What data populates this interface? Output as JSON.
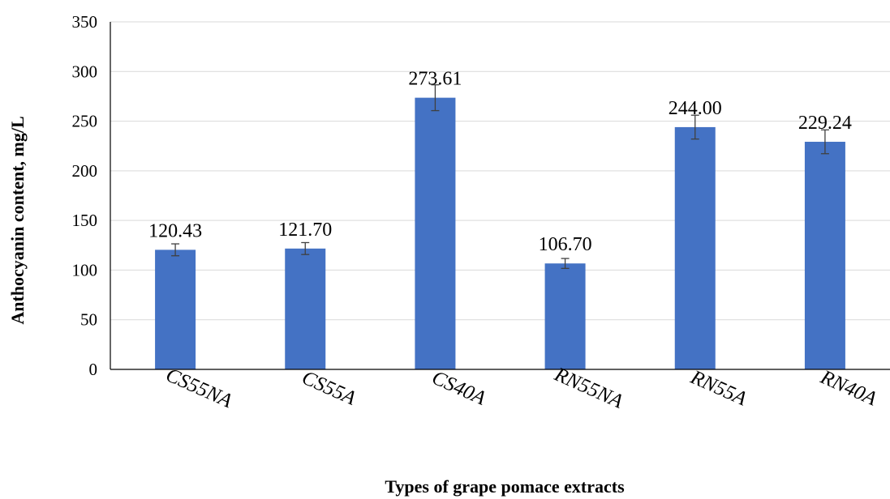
{
  "chart_data": {
    "type": "bar",
    "title": "",
    "xlabel": "Types of grape pomace extracts",
    "ylabel": "Anthocyanin content, mg/L",
    "ylim": [
      0,
      350
    ],
    "yticks": [
      0,
      50,
      100,
      150,
      200,
      250,
      300,
      350
    ],
    "grid": true,
    "legend": "none",
    "categories": [
      "CS55NA",
      "CS55A",
      "CS40A",
      "RN55NA",
      "RN55A",
      "RN40A"
    ],
    "values": [
      120.43,
      121.7,
      273.61,
      106.7,
      244.0,
      229.24
    ],
    "data_labels": [
      "120.43",
      "121.70",
      "273.61",
      "106.70",
      "244.00",
      "229.24"
    ],
    "error": [
      6,
      6,
      13,
      5,
      12,
      12
    ],
    "colors": {
      "bar": "#4472C4",
      "grid": "#D9D9D9",
      "axis": "#000000",
      "errorbar": "#404040"
    }
  }
}
